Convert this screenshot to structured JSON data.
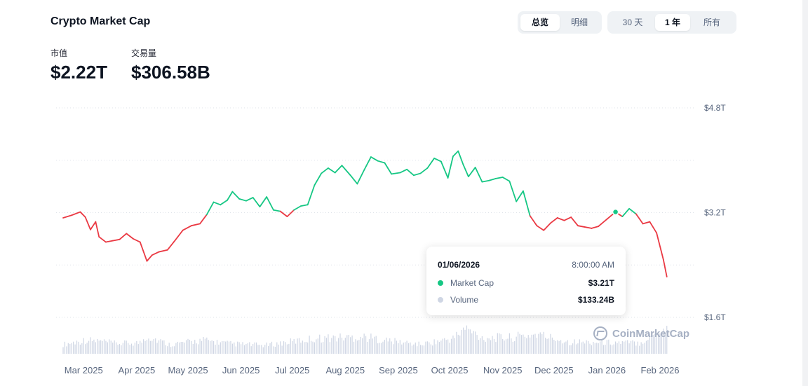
{
  "header": {
    "title": "Crypto Market Cap",
    "view_tabs": [
      {
        "label": "总览",
        "active": true
      },
      {
        "label": "明细",
        "active": false
      }
    ],
    "range_tabs": [
      {
        "label": "30 天",
        "active": false
      },
      {
        "label": "1 年",
        "active": true
      },
      {
        "label": "所有",
        "active": false
      }
    ]
  },
  "stats": {
    "market_cap_label": "市值",
    "market_cap_value": "$2.22T",
    "volume_label": "交易量",
    "volume_value": "$306.58B"
  },
  "tooltip": {
    "date": "01/06/2026",
    "time": "8:00:00 AM",
    "rows": [
      {
        "name": "Market Cap",
        "value": "$3.21T",
        "color": "#16c784"
      },
      {
        "name": "Volume",
        "value": "$133.24B",
        "color": "#cfd6e4"
      }
    ]
  },
  "watermark": "CoinMarketCap",
  "colors": {
    "up": "#16c784",
    "down": "#ea3943",
    "volume": "#cfd6e4",
    "grid": "#dfe3ea"
  },
  "chart_data": {
    "type": "line",
    "title": "Crypto Market Cap",
    "x_labels": [
      "Mar 2025",
      "Apr 2025",
      "May 2025",
      "Jun 2025",
      "Jul 2025",
      "Aug 2025",
      "Sep 2025",
      "Oct 2025",
      "Nov 2025",
      "Dec 2025",
      "Jan 2026",
      "Feb 2026"
    ],
    "y_ticks": [
      {
        "value": 4.8,
        "label": "$4.8T"
      },
      {
        "value": 3.2,
        "label": "$3.2T"
      },
      {
        "value": 1.6,
        "label": "$1.6T"
      }
    ],
    "ylim": [
      1.6,
      4.8
    ],
    "x_range": [
      "2025-02-17",
      "2026-02-17"
    ],
    "baseline_value": 3.2,
    "series": [
      {
        "name": "Market Cap",
        "unit": "T USD",
        "points": [
          [
            "2025-02-17",
            3.12
          ],
          [
            "2025-02-22",
            3.16
          ],
          [
            "2025-02-27",
            3.21
          ],
          [
            "2025-03-02",
            3.13
          ],
          [
            "2025-03-05",
            2.94
          ],
          [
            "2025-03-08",
            3.06
          ],
          [
            "2025-03-10",
            2.83
          ],
          [
            "2025-03-14",
            2.75
          ],
          [
            "2025-03-18",
            2.77
          ],
          [
            "2025-03-22",
            2.79
          ],
          [
            "2025-03-26",
            2.88
          ],
          [
            "2025-03-30",
            2.8
          ],
          [
            "2025-04-03",
            2.75
          ],
          [
            "2025-04-07",
            2.46
          ],
          [
            "2025-04-10",
            2.55
          ],
          [
            "2025-04-14",
            2.6
          ],
          [
            "2025-04-19",
            2.63
          ],
          [
            "2025-04-23",
            2.76
          ],
          [
            "2025-04-28",
            2.93
          ],
          [
            "2025-05-03",
            3.0
          ],
          [
            "2025-05-08",
            3.03
          ],
          [
            "2025-05-12",
            3.17
          ],
          [
            "2025-05-16",
            3.36
          ],
          [
            "2025-05-20",
            3.32
          ],
          [
            "2025-05-24",
            3.39
          ],
          [
            "2025-05-27",
            3.52
          ],
          [
            "2025-05-31",
            3.41
          ],
          [
            "2025-06-04",
            3.38
          ],
          [
            "2025-06-08",
            3.43
          ],
          [
            "2025-06-12",
            3.29
          ],
          [
            "2025-06-16",
            3.44
          ],
          [
            "2025-06-20",
            3.24
          ],
          [
            "2025-06-24",
            3.22
          ],
          [
            "2025-06-28",
            3.14
          ],
          [
            "2025-07-02",
            3.24
          ],
          [
            "2025-07-06",
            3.3
          ],
          [
            "2025-07-10",
            3.32
          ],
          [
            "2025-07-14",
            3.62
          ],
          [
            "2025-07-18",
            3.8
          ],
          [
            "2025-07-22",
            3.88
          ],
          [
            "2025-07-26",
            3.81
          ],
          [
            "2025-07-30",
            3.92
          ],
          [
            "2025-08-04",
            3.77
          ],
          [
            "2025-08-08",
            3.64
          ],
          [
            "2025-08-12",
            3.85
          ],
          [
            "2025-08-16",
            4.05
          ],
          [
            "2025-08-20",
            3.99
          ],
          [
            "2025-08-24",
            3.96
          ],
          [
            "2025-08-28",
            3.79
          ],
          [
            "2025-09-02",
            3.81
          ],
          [
            "2025-09-06",
            3.86
          ],
          [
            "2025-09-10",
            3.77
          ],
          [
            "2025-09-14",
            3.8
          ],
          [
            "2025-09-18",
            3.88
          ],
          [
            "2025-09-22",
            4.03
          ],
          [
            "2025-09-26",
            3.98
          ],
          [
            "2025-09-30",
            3.73
          ],
          [
            "2025-10-03",
            4.06
          ],
          [
            "2025-10-06",
            4.14
          ],
          [
            "2025-10-09",
            3.93
          ],
          [
            "2025-10-12",
            3.75
          ],
          [
            "2025-10-16",
            3.89
          ],
          [
            "2025-10-20",
            3.67
          ],
          [
            "2025-10-24",
            3.69
          ],
          [
            "2025-10-28",
            3.72
          ],
          [
            "2025-11-01",
            3.74
          ],
          [
            "2025-11-05",
            3.68
          ],
          [
            "2025-11-09",
            3.37
          ],
          [
            "2025-11-13",
            3.53
          ],
          [
            "2025-11-17",
            3.15
          ],
          [
            "2025-11-21",
            3.0
          ],
          [
            "2025-11-25",
            2.93
          ],
          [
            "2025-11-29",
            3.04
          ],
          [
            "2025-12-03",
            3.12
          ],
          [
            "2025-12-07",
            3.08
          ],
          [
            "2025-12-11",
            3.13
          ],
          [
            "2025-12-15",
            3.0
          ],
          [
            "2025-12-19",
            2.98
          ],
          [
            "2025-12-23",
            2.96
          ],
          [
            "2025-12-27",
            2.99
          ],
          [
            "2026-01-01",
            3.1
          ],
          [
            "2026-01-06",
            3.21
          ],
          [
            "2026-01-10",
            3.14
          ],
          [
            "2026-01-14",
            3.26
          ],
          [
            "2026-01-18",
            3.18
          ],
          [
            "2026-01-22",
            3.03
          ],
          [
            "2026-01-26",
            3.06
          ],
          [
            "2026-01-30",
            2.89
          ],
          [
            "2026-02-03",
            2.48
          ],
          [
            "2026-02-05",
            2.22
          ]
        ]
      },
      {
        "name": "Volume",
        "unit": "B USD",
        "points": [
          [
            "2025-02-17",
            110
          ],
          [
            "2025-03-02",
            160
          ],
          [
            "2025-03-10",
            150
          ],
          [
            "2025-03-20",
            120
          ],
          [
            "2025-04-03",
            130
          ],
          [
            "2025-04-07",
            210
          ],
          [
            "2025-04-20",
            110
          ],
          [
            "2025-05-10",
            160
          ],
          [
            "2025-05-25",
            120
          ],
          [
            "2025-06-15",
            100
          ],
          [
            "2025-07-14",
            180
          ],
          [
            "2025-07-26",
            190
          ],
          [
            "2025-08-12",
            200
          ],
          [
            "2025-08-24",
            160
          ],
          [
            "2025-09-14",
            110
          ],
          [
            "2025-10-03",
            180
          ],
          [
            "2025-10-10",
            300
          ],
          [
            "2025-10-20",
            190
          ],
          [
            "2025-11-05",
            190
          ],
          [
            "2025-11-21",
            230
          ],
          [
            "2025-12-10",
            140
          ],
          [
            "2026-01-06",
            133
          ],
          [
            "2026-01-20",
            130
          ],
          [
            "2026-02-05",
            307
          ]
        ]
      }
    ],
    "highlight": {
      "date": "2026-01-06",
      "value": 3.21
    }
  }
}
